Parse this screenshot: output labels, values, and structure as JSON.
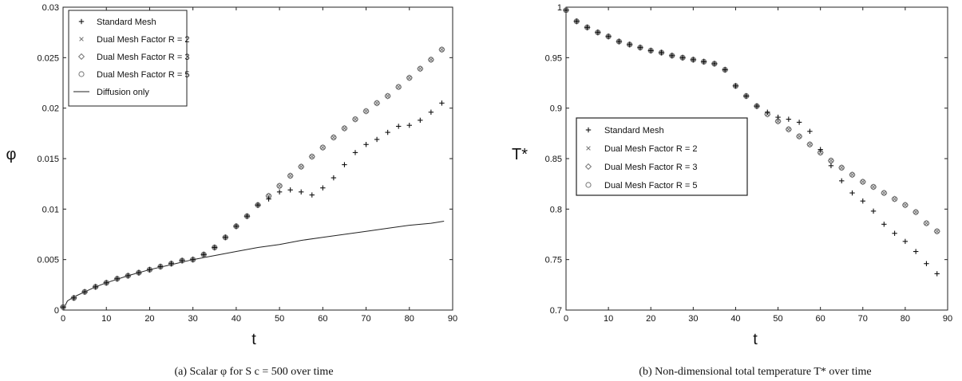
{
  "chart_data": [
    {
      "type": "scatter",
      "panel": "a",
      "caption": "(a) Scalar φ for S c = 500 over time",
      "xlabel": "t",
      "ylabel": "φ",
      "xlim": [
        0,
        90
      ],
      "ylim": [
        0,
        0.03
      ],
      "xticks": [
        0,
        10,
        20,
        30,
        40,
        50,
        60,
        70,
        80,
        90
      ],
      "yticks": [
        0,
        0.005,
        0.01,
        0.015,
        0.02,
        0.025,
        0.03
      ],
      "ytick_labels": [
        "0",
        "0.005",
        "0.01",
        "0.015",
        "0.02",
        "0.025",
        "0.03"
      ],
      "grid": false,
      "legend": "top-left",
      "series": [
        {
          "name": "Standard Mesh",
          "marker": "plus",
          "x": [
            0,
            2.5,
            5,
            7.5,
            10,
            12.5,
            15,
            17.5,
            20,
            22.5,
            25,
            27.5,
            30,
            32.5,
            35,
            37.5,
            40,
            42.5,
            45,
            47.5,
            50,
            52.5,
            55,
            57.5,
            60,
            62.5,
            65,
            67.5,
            70,
            72.5,
            75,
            77.5,
            80,
            82.5,
            85,
            87.5
          ],
          "y": [
            0.0003,
            0.0012,
            0.0018,
            0.0023,
            0.0027,
            0.0031,
            0.0034,
            0.0037,
            0.004,
            0.0043,
            0.0046,
            0.0049,
            0.005,
            0.0055,
            0.0062,
            0.0072,
            0.0083,
            0.0093,
            0.0104,
            0.011,
            0.0117,
            0.0119,
            0.0117,
            0.0114,
            0.0121,
            0.0131,
            0.0144,
            0.0156,
            0.0164,
            0.0169,
            0.0176,
            0.0182,
            0.0183,
            0.0188,
            0.0196,
            0.0205
          ]
        },
        {
          "name": "Dual Mesh Factor R = 2",
          "marker": "x",
          "x": [
            0,
            2.5,
            5,
            7.5,
            10,
            12.5,
            15,
            17.5,
            20,
            22.5,
            25,
            27.5,
            30,
            32.5,
            35,
            37.5,
            40,
            42.5,
            45,
            47.5,
            50,
            52.5,
            55,
            57.5,
            60,
            62.5,
            65,
            67.5,
            70,
            72.5,
            75,
            77.5,
            80,
            82.5,
            85,
            87.5
          ],
          "y": [
            0.0003,
            0.0012,
            0.0018,
            0.0023,
            0.0027,
            0.0031,
            0.0034,
            0.0037,
            0.004,
            0.0043,
            0.0046,
            0.0049,
            0.005,
            0.0055,
            0.0062,
            0.0072,
            0.0083,
            0.0093,
            0.0104,
            0.0113,
            0.0123,
            0.0133,
            0.0142,
            0.0152,
            0.0161,
            0.0171,
            0.018,
            0.0189,
            0.0197,
            0.0205,
            0.0212,
            0.0221,
            0.023,
            0.0239,
            0.0248,
            0.0258
          ]
        },
        {
          "name": "Dual Mesh Factor R = 3",
          "marker": "diamond",
          "x": [
            0,
            2.5,
            5,
            7.5,
            10,
            12.5,
            15,
            17.5,
            20,
            22.5,
            25,
            27.5,
            30,
            32.5,
            35,
            37.5,
            40,
            42.5,
            45,
            47.5,
            50,
            52.5,
            55,
            57.5,
            60,
            62.5,
            65,
            67.5,
            70,
            72.5,
            75,
            77.5,
            80,
            82.5,
            85,
            87.5
          ],
          "y": [
            0.0003,
            0.0012,
            0.0018,
            0.0023,
            0.0027,
            0.0031,
            0.0034,
            0.0037,
            0.004,
            0.0043,
            0.0046,
            0.0049,
            0.005,
            0.0055,
            0.0062,
            0.0072,
            0.0083,
            0.0093,
            0.0104,
            0.0113,
            0.0123,
            0.0133,
            0.0142,
            0.0152,
            0.0161,
            0.0171,
            0.018,
            0.0189,
            0.0197,
            0.0205,
            0.0212,
            0.0221,
            0.023,
            0.0239,
            0.0248,
            0.0258
          ]
        },
        {
          "name": "Dual Mesh Factor R = 5",
          "marker": "circle",
          "x": [
            0,
            2.5,
            5,
            7.5,
            10,
            12.5,
            15,
            17.5,
            20,
            22.5,
            25,
            27.5,
            30,
            32.5,
            35,
            37.5,
            40,
            42.5,
            45,
            47.5,
            50,
            52.5,
            55,
            57.5,
            60,
            62.5,
            65,
            67.5,
            70,
            72.5,
            75,
            77.5,
            80,
            82.5,
            85,
            87.5
          ],
          "y": [
            0.0003,
            0.0012,
            0.0018,
            0.0023,
            0.0027,
            0.0031,
            0.0034,
            0.0037,
            0.004,
            0.0043,
            0.0046,
            0.0049,
            0.005,
            0.0055,
            0.0062,
            0.0072,
            0.0083,
            0.0093,
            0.0104,
            0.0113,
            0.0123,
            0.0133,
            0.0142,
            0.0152,
            0.0161,
            0.0171,
            0.018,
            0.0189,
            0.0197,
            0.0205,
            0.0212,
            0.0221,
            0.023,
            0.0239,
            0.0248,
            0.0258
          ]
        },
        {
          "name": "Diffusion only",
          "marker": "line",
          "x": [
            0,
            1,
            2.5,
            5,
            7.5,
            10,
            15,
            20,
            25,
            30,
            35,
            40,
            45,
            50,
            55,
            60,
            65,
            70,
            75,
            80,
            85,
            88
          ],
          "y": [
            0,
            0.0009,
            0.0013,
            0.0018,
            0.0023,
            0.0027,
            0.0034,
            0.004,
            0.0045,
            0.005,
            0.0054,
            0.0058,
            0.0062,
            0.0065,
            0.0069,
            0.0072,
            0.0075,
            0.0078,
            0.0081,
            0.0084,
            0.0086,
            0.0088
          ]
        }
      ]
    },
    {
      "type": "scatter",
      "panel": "b",
      "caption": "(b) Non-dimensional total temperature T* over time",
      "xlabel": "t",
      "ylabel": "T*",
      "xlim": [
        0,
        90
      ],
      "ylim": [
        0.7,
        1.0
      ],
      "xticks": [
        0,
        10,
        20,
        30,
        40,
        50,
        60,
        70,
        80,
        90
      ],
      "yticks": [
        0.7,
        0.75,
        0.8,
        0.85,
        0.9,
        0.95,
        1.0
      ],
      "ytick_labels": [
        "0.7",
        "0.75",
        "0.8",
        "0.85",
        "0.9",
        "0.95",
        "1"
      ],
      "grid": false,
      "legend": "center-left",
      "series": [
        {
          "name": "Standard Mesh",
          "marker": "plus",
          "x": [
            0,
            2.5,
            5,
            7.5,
            10,
            12.5,
            15,
            17.5,
            20,
            22.5,
            25,
            27.5,
            30,
            32.5,
            35,
            37.5,
            40,
            42.5,
            45,
            47.5,
            50,
            52.5,
            55,
            57.5,
            60,
            62.5,
            65,
            67.5,
            70,
            72.5,
            75,
            77.5,
            80,
            82.5,
            85,
            87.5
          ],
          "y": [
            0.997,
            0.986,
            0.98,
            0.975,
            0.971,
            0.966,
            0.963,
            0.96,
            0.957,
            0.955,
            0.952,
            0.95,
            0.948,
            0.946,
            0.944,
            0.938,
            0.922,
            0.912,
            0.902,
            0.896,
            0.891,
            0.889,
            0.886,
            0.877,
            0.859,
            0.843,
            0.828,
            0.816,
            0.808,
            0.798,
            0.785,
            0.776,
            0.768,
            0.758,
            0.746,
            0.736
          ]
        },
        {
          "name": "Dual Mesh Factor R = 2",
          "marker": "x",
          "x": [
            0,
            2.5,
            5,
            7.5,
            10,
            12.5,
            15,
            17.5,
            20,
            22.5,
            25,
            27.5,
            30,
            32.5,
            35,
            37.5,
            40,
            42.5,
            45,
            47.5,
            50,
            52.5,
            55,
            57.5,
            60,
            62.5,
            65,
            67.5,
            70,
            72.5,
            75,
            77.5,
            80,
            82.5,
            85,
            87.5
          ],
          "y": [
            0.997,
            0.986,
            0.98,
            0.975,
            0.971,
            0.966,
            0.963,
            0.96,
            0.957,
            0.955,
            0.952,
            0.95,
            0.948,
            0.946,
            0.944,
            0.938,
            0.922,
            0.912,
            0.902,
            0.894,
            0.887,
            0.879,
            0.872,
            0.864,
            0.856,
            0.848,
            0.841,
            0.834,
            0.827,
            0.822,
            0.816,
            0.81,
            0.804,
            0.797,
            0.786,
            0.778
          ]
        },
        {
          "name": "Dual Mesh Factor R = 3",
          "marker": "diamond",
          "x": [
            0,
            2.5,
            5,
            7.5,
            10,
            12.5,
            15,
            17.5,
            20,
            22.5,
            25,
            27.5,
            30,
            32.5,
            35,
            37.5,
            40,
            42.5,
            45,
            47.5,
            50,
            52.5,
            55,
            57.5,
            60,
            62.5,
            65,
            67.5,
            70,
            72.5,
            75,
            77.5,
            80,
            82.5,
            85,
            87.5
          ],
          "y": [
            0.997,
            0.986,
            0.98,
            0.975,
            0.971,
            0.966,
            0.963,
            0.96,
            0.957,
            0.955,
            0.952,
            0.95,
            0.948,
            0.946,
            0.944,
            0.938,
            0.922,
            0.912,
            0.902,
            0.894,
            0.887,
            0.879,
            0.872,
            0.864,
            0.856,
            0.848,
            0.841,
            0.834,
            0.827,
            0.822,
            0.816,
            0.81,
            0.804,
            0.797,
            0.786,
            0.778
          ]
        },
        {
          "name": "Dual Mesh Factor R = 5",
          "marker": "circle",
          "x": [
            0,
            2.5,
            5,
            7.5,
            10,
            12.5,
            15,
            17.5,
            20,
            22.5,
            25,
            27.5,
            30,
            32.5,
            35,
            37.5,
            40,
            42.5,
            45,
            47.5,
            50,
            52.5,
            55,
            57.5,
            60,
            62.5,
            65,
            67.5,
            70,
            72.5,
            75,
            77.5,
            80,
            82.5,
            85,
            87.5
          ],
          "y": [
            0.997,
            0.986,
            0.98,
            0.975,
            0.971,
            0.966,
            0.963,
            0.96,
            0.957,
            0.955,
            0.952,
            0.95,
            0.948,
            0.946,
            0.944,
            0.938,
            0.922,
            0.912,
            0.902,
            0.894,
            0.887,
            0.879,
            0.872,
            0.864,
            0.856,
            0.848,
            0.841,
            0.834,
            0.827,
            0.822,
            0.816,
            0.81,
            0.804,
            0.797,
            0.786,
            0.778
          ]
        }
      ]
    }
  ]
}
